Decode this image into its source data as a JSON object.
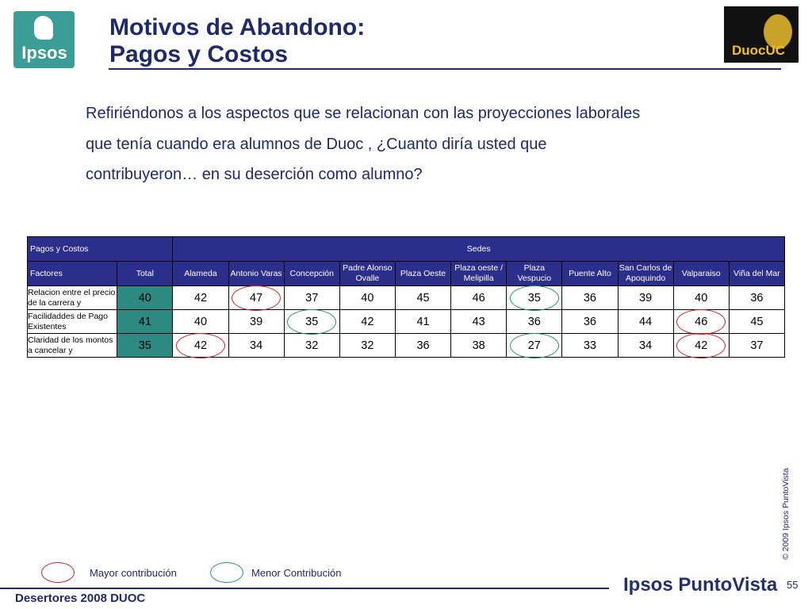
{
  "header": {
    "title_line1": "Motivos de Abandono:",
    "title_line2": "Pagos y Costos",
    "ipsos_logo_text": "Ipsos",
    "duoc_logo_text": "DuocUC"
  },
  "question": {
    "line1": "Refiriéndonos a los aspectos que se relacionan con las proyecciones laborales",
    "line2": "que tenía cuando era alumnos de Duoc , ¿Cuanto diría usted que",
    "line3": "contribuyeron… en su deserción como alumno?"
  },
  "table": {
    "section_label": "Pagos y Costos",
    "group_label": "Sedes",
    "columns": [
      "Factores",
      "Total",
      "Alameda",
      "Antonio Varas",
      "Concepción",
      "Padre Alonso Ovalle",
      "Plaza Oeste",
      "Plaza oeste / Melipilla",
      "Plaza Vespucio",
      "Puente Alto",
      "San Carlos de Apoquindo",
      "Valparaiso",
      "Viña del Mar"
    ],
    "rows": [
      {
        "label": "Relacion entre el precio de la carrera y",
        "values": [
          "40",
          "42",
          "47",
          "37",
          "40",
          "45",
          "46",
          "35",
          "36",
          "39",
          "40",
          "36"
        ],
        "marks": [
          "",
          "",
          "red",
          "",
          "",
          "",
          "",
          "green",
          "",
          "",
          "",
          ""
        ]
      },
      {
        "label": "Facilidaddes de Pago Existentes",
        "values": [
          "41",
          "40",
          "39",
          "35",
          "42",
          "41",
          "43",
          "36",
          "36",
          "44",
          "46",
          "45"
        ],
        "marks": [
          "",
          "",
          "",
          "green",
          "",
          "",
          "",
          "",
          "",
          "",
          "red",
          ""
        ]
      },
      {
        "label": "Claridad de los montos a cancelar y",
        "values": [
          "35",
          "42",
          "34",
          "32",
          "32",
          "36",
          "38",
          "27",
          "33",
          "34",
          "42",
          "37"
        ],
        "marks": [
          "",
          "red",
          "",
          "",
          "",
          "",
          "",
          "green",
          "",
          "",
          "red",
          ""
        ]
      }
    ]
  },
  "legend": {
    "mayor": "Mayor contribución",
    "menor": "Menor Contribución"
  },
  "colors": {
    "mayor_mark": "#d62020",
    "menor_mark": "#1f9a6a",
    "header_bg": "#2c2e8c",
    "total_bg": "#2c8a82"
  },
  "copyright": "© 2009 Ipsos PuntoVista",
  "footer": {
    "left": "Desertores 2008 DUOC",
    "brand": "Ipsos PuntoVista",
    "page": "55"
  }
}
